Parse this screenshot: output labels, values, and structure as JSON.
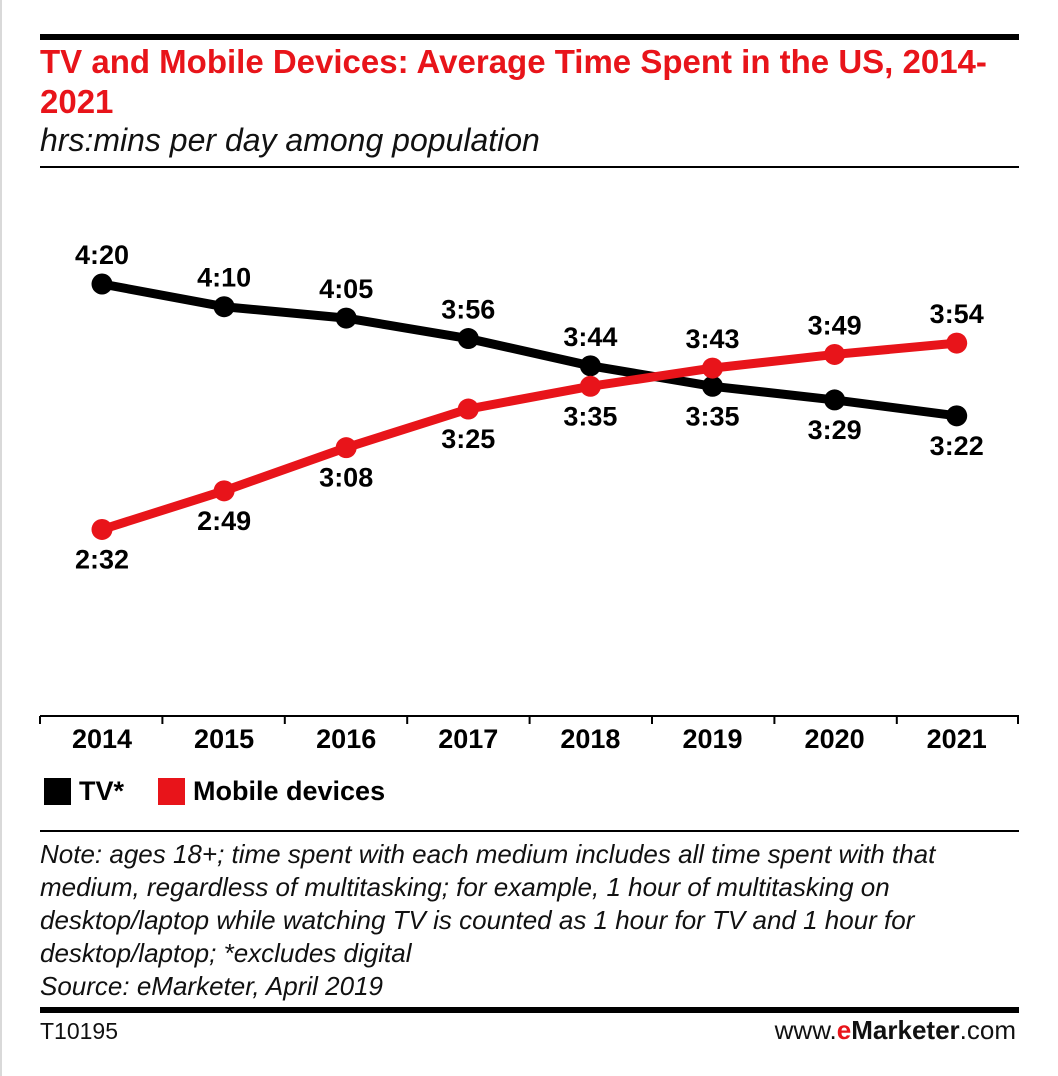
{
  "header": {
    "title": "TV and Mobile Devices: Average Time Spent in the US, 2014-2021",
    "subtitle": "hrs:mins per day among population"
  },
  "legend": {
    "items": [
      {
        "label": "TV*",
        "color": "#000000"
      },
      {
        "label": "Mobile devices",
        "color": "#e8141a"
      }
    ]
  },
  "notes": {
    "note": "Note: ages 18+; time spent with each medium includes all time spent with that medium, regardless of multitasking; for example, 1 hour of multitasking on desktop/laptop while watching TV is counted as 1 hour for TV and 1 hour for desktop/laptop; *excludes digital",
    "source": "Source: eMarketer, April 2019"
  },
  "footer": {
    "chart_id": "T10195",
    "brand_prefix": "www.",
    "brand_e": "e",
    "brand_name": "Marketer",
    "brand_suffix": ".com"
  },
  "chart_data": {
    "type": "line",
    "title": "TV and Mobile Devices: Average Time Spent in the US, 2014-2021",
    "subtitle": "hrs:mins per day among population",
    "categories": [
      "2014",
      "2015",
      "2016",
      "2017",
      "2018",
      "2019",
      "2020",
      "2021"
    ],
    "series": [
      {
        "name": "TV*",
        "color": "#000000",
        "values": [
          260,
          250,
          245,
          236,
          224,
          215,
          209,
          202
        ],
        "labels": [
          "4:20",
          "4:10",
          "4:05",
          "3:56",
          "3:44",
          "3:35",
          "3:29",
          "3:22"
        ]
      },
      {
        "name": "Mobile devices",
        "color": "#e8141a",
        "values": [
          152,
          169,
          188,
          205,
          215,
          223,
          229,
          234
        ],
        "labels": [
          "2:32",
          "2:49",
          "3:08",
          "3:25",
          "3:35",
          "3:43",
          "3:49",
          "3:54"
        ]
      }
    ],
    "value_unit": "minutes per day",
    "grid": false,
    "legend_position": "bottom-left"
  }
}
